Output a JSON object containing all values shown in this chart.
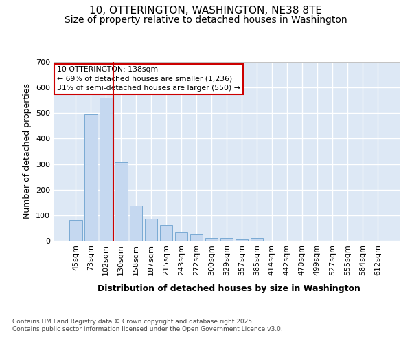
{
  "title_line1": "10, OTTERINGTON, WASHINGTON, NE38 8TE",
  "title_line2": "Size of property relative to detached houses in Washington",
  "xlabel": "Distribution of detached houses by size in Washington",
  "ylabel": "Number of detached properties",
  "categories": [
    "45sqm",
    "73sqm",
    "102sqm",
    "130sqm",
    "158sqm",
    "187sqm",
    "215sqm",
    "243sqm",
    "272sqm",
    "300sqm",
    "329sqm",
    "357sqm",
    "385sqm",
    "414sqm",
    "442sqm",
    "470sqm",
    "499sqm",
    "527sqm",
    "555sqm",
    "584sqm",
    "612sqm"
  ],
  "values": [
    82,
    495,
    560,
    308,
    138,
    85,
    63,
    36,
    28,
    11,
    10,
    6,
    11,
    0,
    0,
    0,
    0,
    0,
    0,
    0,
    0
  ],
  "bar_color": "#c5d8f0",
  "bar_edge_color": "#7aaad4",
  "vline_color": "#cc0000",
  "vline_pos": 2.5,
  "annotation_title": "10 OTTERINGTON: 138sqm",
  "annotation_line2": "← 69% of detached houses are smaller (1,236)",
  "annotation_line3": "31% of semi-detached houses are larger (550) →",
  "annotation_box_color": "#cc0000",
  "annotation_bg": "#ffffff",
  "ylim": [
    0,
    700
  ],
  "yticks": [
    0,
    100,
    200,
    300,
    400,
    500,
    600,
    700
  ],
  "footer_line1": "Contains HM Land Registry data © Crown copyright and database right 2025.",
  "footer_line2": "Contains public sector information licensed under the Open Government Licence v3.0.",
  "plot_bg_color": "#dde8f5",
  "fig_bg_color": "#ffffff",
  "grid_color": "#ffffff",
  "title_fontsize": 11,
  "subtitle_fontsize": 10,
  "tick_fontsize": 8,
  "label_fontsize": 9,
  "ylabel_fontsize": 9
}
